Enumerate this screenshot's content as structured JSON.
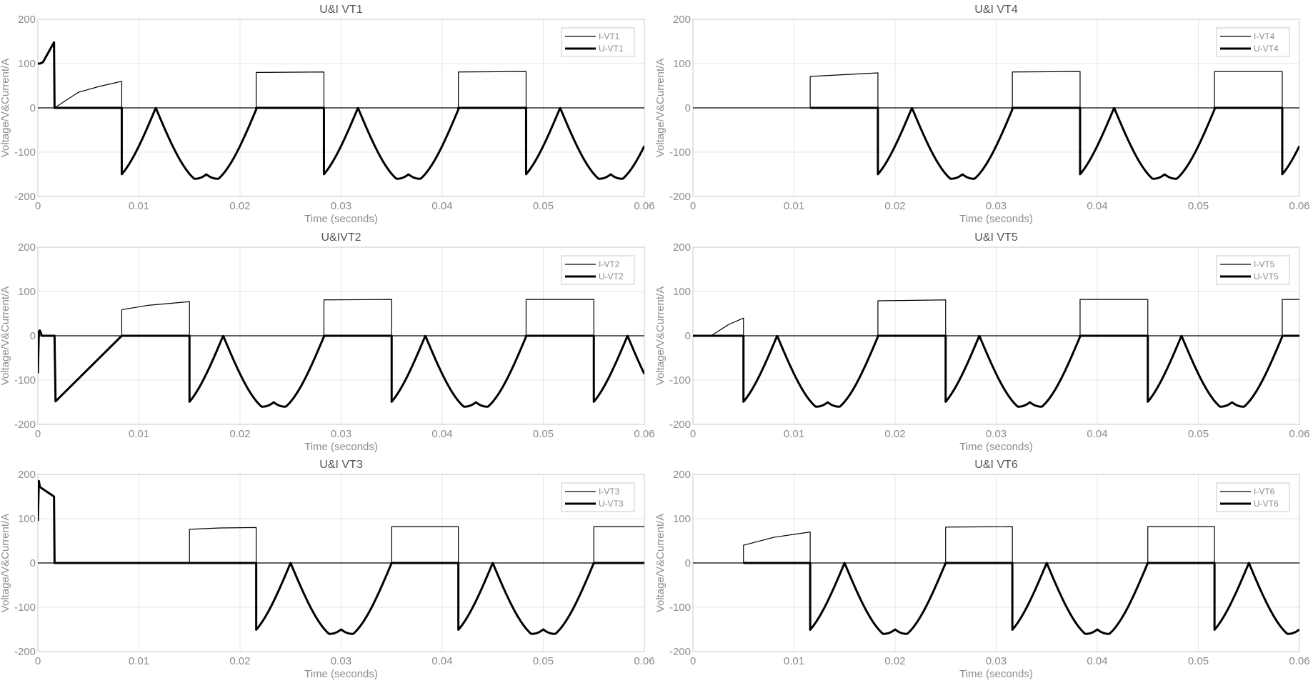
{
  "figure": {
    "background": "#ffffff",
    "line_color": "#000000"
  },
  "chart_data": [
    {
      "type": "line",
      "title": "U&I VT1",
      "xlabel": "Time (seconds)",
      "ylabel": "Voltage/V&Current/A",
      "xlim": [
        0,
        0.06
      ],
      "ylim": [
        -200,
        200
      ],
      "xticks": [
        "0",
        "0.01",
        "0.02",
        "0.03",
        "0.04",
        "0.05",
        "0.06"
      ],
      "yticks": [
        "-200",
        "-100",
        "0",
        "100",
        "200"
      ],
      "grid": true,
      "legend_position": "top-right",
      "series": [
        {
          "name": "I-VT1",
          "style": "thin",
          "x": [
            0,
            0.00165,
            0.004,
            0.006,
            0.0083,
            0.0083,
            0.0216,
            0.0216,
            0.0283,
            0.0283,
            0.0416,
            0.0416,
            0.0483,
            0.0483,
            0.06
          ],
          "y": [
            0,
            0,
            35,
            48,
            60,
            0,
            0,
            80,
            81,
            0,
            0,
            81,
            82,
            0,
            0
          ]
        },
        {
          "name": "U-VT1",
          "style": "thick",
          "envelope": {
            "amp": 172,
            "phase_deg": 330,
            "period": 0.02,
            "notch_depth": 22,
            "notch_width": 0.0012
          },
          "x": [
            0,
            0.0002,
            0.0005,
            0.0016,
            0.00165,
            0.0083,
            0.0216,
            0.0283,
            0.0416,
            0.0483
          ],
          "y": [
            100,
            100,
            103,
            148,
            0,
            0,
            0,
            0,
            0,
            0
          ],
          "conduction": [
            [
              0.00165,
              0.0083
            ],
            [
              0.0216,
              0.0283
            ],
            [
              0.0416,
              0.0483
            ]
          ]
        }
      ]
    },
    {
      "type": "line",
      "title": "U&I VT4",
      "xlabel": "Time (seconds)",
      "ylabel": "Voltage/V&Current/A",
      "xlim": [
        0,
        0.06
      ],
      "ylim": [
        -200,
        200
      ],
      "xticks": [
        "0",
        "0.01",
        "0.02",
        "0.03",
        "0.04",
        "0.05",
        "0.06"
      ],
      "yticks": [
        "-200",
        "-100",
        "0",
        "100",
        "200"
      ],
      "grid": true,
      "legend_position": "top-right",
      "series": [
        {
          "name": "I-VT4",
          "style": "thin",
          "x": [
            0,
            0.0116,
            0.0116,
            0.0183,
            0.0183,
            0.0316,
            0.0316,
            0.0383,
            0.0383,
            0.0516,
            0.0516,
            0.0583,
            0.0583,
            0.06
          ],
          "y": [
            0,
            0,
            71,
            79,
            0,
            0,
            81,
            82,
            0,
            0,
            82,
            82,
            0,
            0
          ]
        },
        {
          "name": "U-VT4",
          "style": "thick",
          "envelope": {
            "amp": 172,
            "phase_deg": 150,
            "period": 0.02,
            "notch_depth": 22,
            "notch_width": 0.0012
          },
          "x": [
            0.0116,
            0.0183,
            0.0316,
            0.0383,
            0.0516,
            0.0583
          ],
          "y": [
            0,
            0,
            0,
            0,
            0,
            0
          ],
          "conduction": [
            [
              0.0116,
              0.0183
            ],
            [
              0.0316,
              0.0383
            ],
            [
              0.0516,
              0.0583
            ]
          ]
        }
      ]
    },
    {
      "type": "line",
      "title": "U&IVT2",
      "xlabel": "Time (seconds)",
      "ylabel": "Voltage/V&Current/A",
      "xlim": [
        0,
        0.06
      ],
      "ylim": [
        -200,
        200
      ],
      "xticks": [
        "0",
        "0.01",
        "0.02",
        "0.03",
        "0.04",
        "0.05",
        "0.06"
      ],
      "yticks": [
        "-200",
        "-100",
        "0",
        "100",
        "200"
      ],
      "grid": true,
      "legend_position": "top-right",
      "series": [
        {
          "name": "I-VT2",
          "style": "thin",
          "x": [
            0,
            0.0083,
            0.0083,
            0.011,
            0.015,
            0.015,
            0.0283,
            0.0283,
            0.035,
            0.035,
            0.0483,
            0.0483,
            0.055,
            0.055,
            0.06
          ],
          "y": [
            0,
            0,
            59,
            69,
            77,
            0,
            0,
            81,
            82,
            0,
            0,
            82,
            82,
            0,
            0
          ]
        },
        {
          "name": "U-VT2",
          "style": "thick",
          "envelope": {
            "amp": 172,
            "phase_deg": 30,
            "period": 0.02,
            "notch_depth": 22,
            "notch_width": 0.0012
          },
          "x": [
            0,
            0.0001,
            0.0002,
            0.0004,
            0.0016,
            0.00165,
            0.00175,
            0.0083,
            0.015,
            0.0283,
            0.035,
            0.0483,
            0.055
          ],
          "y": [
            -85,
            10,
            12,
            0,
            0,
            0,
            -148,
            0,
            0,
            0,
            0,
            0,
            0
          ],
          "conduction": [
            [
              0.0083,
              0.015
            ],
            [
              0.0283,
              0.035
            ],
            [
              0.0483,
              0.055
            ]
          ]
        }
      ]
    },
    {
      "type": "line",
      "title": "U&I VT5",
      "xlabel": "Time (seconds)",
      "ylabel": "Voltage/V&Current/A",
      "xlim": [
        0,
        0.06
      ],
      "ylim": [
        -200,
        200
      ],
      "xticks": [
        "0",
        "0.01",
        "0.02",
        "0.03",
        "0.04",
        "0.05",
        "0.06"
      ],
      "yticks": [
        "-200",
        "-100",
        "0",
        "100",
        "200"
      ],
      "grid": true,
      "legend_position": "top-right",
      "series": [
        {
          "name": "I-VT5",
          "style": "thin",
          "x": [
            0,
            0.0018,
            0.0035,
            0.005,
            0.005,
            0.0183,
            0.0183,
            0.025,
            0.025,
            0.0383,
            0.0383,
            0.045,
            0.045,
            0.0583,
            0.0583,
            0.06
          ],
          "y": [
            0,
            0,
            25,
            40,
            0,
            0,
            79,
            81,
            0,
            0,
            82,
            82,
            0,
            0,
            82,
            82
          ]
        },
        {
          "name": "U-VT5",
          "style": "thick",
          "envelope": {
            "amp": 172,
            "phase_deg": 210,
            "period": 0.02,
            "notch_depth": 22,
            "notch_width": 0.0012
          },
          "x": [
            0,
            0.005,
            0.0183,
            0.025,
            0.0383,
            0.045,
            0.0583
          ],
          "y": [
            0,
            0,
            0,
            0,
            0,
            0,
            0
          ],
          "conduction": [
            [
              0,
              0.005
            ],
            [
              0.0183,
              0.025
            ],
            [
              0.0383,
              0.045
            ],
            [
              0.0583,
              0.06
            ]
          ]
        }
      ]
    },
    {
      "type": "line",
      "title": "U&I VT3",
      "xlabel": "Time (seconds)",
      "ylabel": "Voltage/V&Current/A",
      "xlim": [
        0,
        0.06
      ],
      "ylim": [
        -200,
        200
      ],
      "xticks": [
        "0",
        "0.01",
        "0.02",
        "0.03",
        "0.04",
        "0.05",
        "0.06"
      ],
      "yticks": [
        "-200",
        "-100",
        "0",
        "100",
        "200"
      ],
      "grid": true,
      "legend_position": "top-right",
      "series": [
        {
          "name": "I-VT3",
          "style": "thin",
          "x": [
            0,
            0.015,
            0.015,
            0.018,
            0.0216,
            0.0216,
            0.035,
            0.035,
            0.0416,
            0.0416,
            0.055,
            0.055,
            0.06
          ],
          "y": [
            0,
            0,
            76,
            79,
            80,
            0,
            0,
            82,
            82,
            0,
            0,
            82,
            82
          ]
        },
        {
          "name": "U-VT3",
          "style": "thick",
          "envelope": {
            "amp": 172,
            "phase_deg": 90,
            "period": 0.02,
            "notch_depth": 22,
            "notch_width": 0.0012
          },
          "x": [
            0,
            0.0001,
            0.0002,
            0.0003,
            0.0016,
            0.00165,
            0.015,
            0.0216,
            0.035,
            0.0416,
            0.055
          ],
          "y": [
            95,
            185,
            172,
            170,
            150,
            0,
            0,
            0,
            0,
            0,
            0
          ],
          "conduction": [
            [
              0.015,
              0.0216
            ],
            [
              0.035,
              0.0416
            ],
            [
              0.055,
              0.06
            ]
          ]
        }
      ]
    },
    {
      "type": "line",
      "title": "U&I VT6",
      "xlabel": "Time (seconds)",
      "ylabel": "Voltage/V&Current/A",
      "xlim": [
        0,
        0.06
      ],
      "ylim": [
        -200,
        200
      ],
      "xticks": [
        "0",
        "0.01",
        "0.02",
        "0.03",
        "0.04",
        "0.05",
        "0.06"
      ],
      "yticks": [
        "-200",
        "-100",
        "0",
        "100",
        "200"
      ],
      "grid": true,
      "legend_position": "top-right",
      "series": [
        {
          "name": "I-VT6",
          "style": "thin",
          "x": [
            0,
            0.005,
            0.005,
            0.008,
            0.0116,
            0.0116,
            0.025,
            0.025,
            0.0316,
            0.0316,
            0.045,
            0.045,
            0.0516,
            0.0516,
            0.06
          ],
          "y": [
            0,
            0,
            40,
            58,
            70,
            0,
            0,
            81,
            82,
            0,
            0,
            82,
            82,
            0,
            0
          ]
        },
        {
          "name": "U-VT6",
          "style": "thick",
          "envelope": {
            "amp": 172,
            "phase_deg": 270,
            "period": 0.02,
            "notch_depth": 22,
            "notch_width": 0.0012
          },
          "x": [
            0.005,
            0.0116,
            0.025,
            0.0316,
            0.045,
            0.0516
          ],
          "y": [
            0,
            0,
            0,
            0,
            0,
            0
          ],
          "conduction": [
            [
              0.005,
              0.0116
            ],
            [
              0.025,
              0.0316
            ],
            [
              0.045,
              0.0516
            ]
          ]
        }
      ]
    }
  ]
}
